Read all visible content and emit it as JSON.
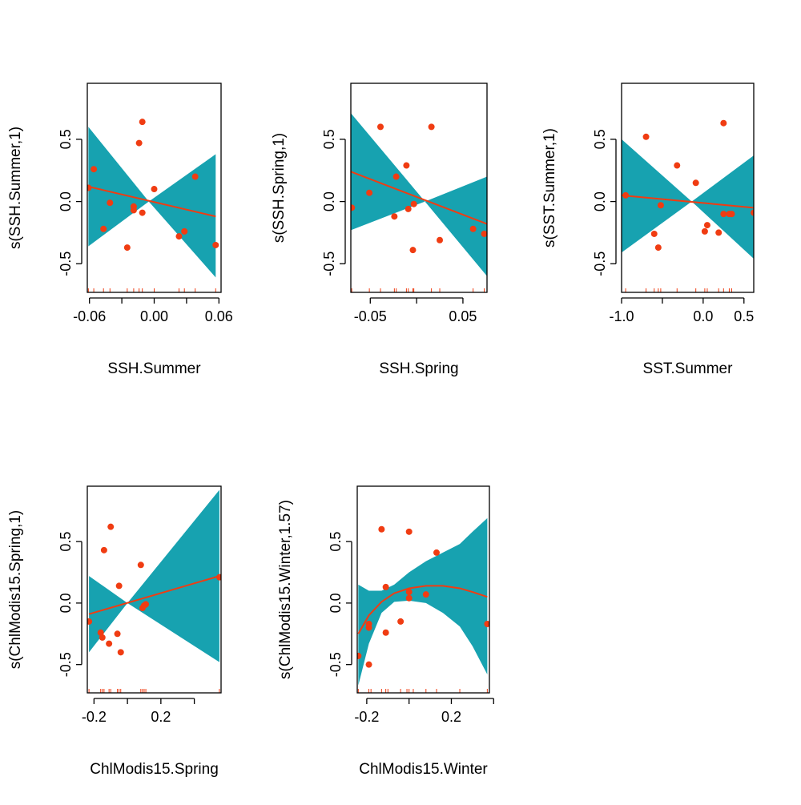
{
  "colors": {
    "band": "#17a2b0",
    "accent": "#f03c12",
    "axis": "#000000",
    "background": "#ffffff"
  },
  "chart_data": [
    {
      "type": "scatter",
      "xlabel": "SSH.Summer",
      "ylabel": "s(SSH.Summer,1)",
      "xlim": [
        -0.062,
        0.062
      ],
      "ylim": [
        -0.73,
        0.95
      ],
      "xticks": [
        -0.06,
        0.0,
        0.06
      ],
      "xtick_labels": [
        "-0.06",
        "0.00",
        "0.06"
      ],
      "xminor": [
        -0.03,
        0.03
      ],
      "yticks": [
        -0.5,
        0.0,
        0.5
      ],
      "ytick_labels": [
        "-0.5",
        "0.0",
        "0.5"
      ],
      "fit": [
        [
          -0.061,
          0.12
        ],
        [
          0.057,
          -0.12
        ]
      ],
      "band_upper": [
        [
          -0.061,
          0.6
        ],
        [
          -0.005,
          0.0
        ],
        [
          0.057,
          0.38
        ]
      ],
      "band_lower": [
        [
          -0.061,
          -0.36
        ],
        [
          -0.005,
          0.0
        ],
        [
          0.057,
          -0.61
        ]
      ],
      "points": [
        [
          -0.061,
          0.11
        ],
        [
          -0.056,
          0.26
        ],
        [
          -0.047,
          -0.22
        ],
        [
          -0.041,
          -0.01
        ],
        [
          -0.025,
          -0.37
        ],
        [
          -0.019,
          -0.04
        ],
        [
          -0.019,
          -0.07
        ],
        [
          -0.014,
          0.47
        ],
        [
          -0.011,
          0.64
        ],
        [
          -0.011,
          -0.09
        ],
        [
          0.0,
          0.1
        ],
        [
          0.023,
          -0.28
        ],
        [
          0.028,
          -0.24
        ],
        [
          0.038,
          0.2
        ],
        [
          0.057,
          -0.35
        ]
      ],
      "rug": [
        -0.061,
        -0.056,
        -0.047,
        -0.041,
        -0.025,
        -0.019,
        -0.014,
        -0.011,
        0.0,
        0.023,
        0.028,
        0.038,
        0.057
      ]
    },
    {
      "type": "scatter",
      "xlabel": "SSH.Spring",
      "ylabel": "s(SSH.Spring,1)",
      "xlim": [
        -0.071,
        0.076
      ],
      "ylim": [
        -0.73,
        0.95
      ],
      "xticks": [
        -0.05,
        0.0,
        0.05
      ],
      "xtick_labels": [
        "-0.05",
        "",
        "0.05"
      ],
      "xminor": [],
      "yticks": [
        -0.5,
        0.0,
        0.5
      ],
      "ytick_labels": [
        "-0.5",
        "0.0",
        "0.5"
      ],
      "fit": [
        [
          -0.071,
          0.24
        ],
        [
          0.076,
          -0.18
        ]
      ],
      "band_upper": [
        [
          -0.071,
          0.71
        ],
        [
          0.009,
          0.0
        ],
        [
          0.076,
          0.2
        ]
      ],
      "band_lower": [
        [
          -0.071,
          -0.23
        ],
        [
          0.009,
          0.0
        ],
        [
          0.076,
          -0.6
        ]
      ],
      "points": [
        [
          -0.07,
          -0.05
        ],
        [
          -0.051,
          0.07
        ],
        [
          -0.039,
          0.6
        ],
        [
          -0.024,
          -0.12
        ],
        [
          -0.022,
          0.2
        ],
        [
          -0.011,
          0.29
        ],
        [
          -0.009,
          -0.06
        ],
        [
          -0.004,
          -0.39
        ],
        [
          -0.003,
          -0.02
        ],
        [
          0.016,
          0.6
        ],
        [
          0.025,
          -0.31
        ],
        [
          0.061,
          -0.22
        ],
        [
          0.073,
          -0.26
        ]
      ],
      "rug": [
        -0.07,
        -0.051,
        -0.039,
        -0.024,
        -0.022,
        -0.011,
        -0.009,
        -0.004,
        -0.003,
        0.016,
        0.025,
        0.061,
        0.073
      ]
    },
    {
      "type": "scatter",
      "xlabel": "SST.Summer",
      "ylabel": "s(SST.Summer,1)",
      "xlim": [
        -1.0,
        0.62
      ],
      "ylim": [
        -0.73,
        0.95
      ],
      "xticks": [
        -1.0,
        0.0,
        0.5
      ],
      "xtick_labels": [
        "-1.0",
        "0.0",
        "0.5"
      ],
      "xminor": [
        -0.5
      ],
      "yticks": [
        -0.5,
        0.0,
        0.5
      ],
      "ytick_labels": [
        "-0.5",
        "0.0",
        "0.5"
      ],
      "fit": [
        [
          -1.0,
          0.05
        ],
        [
          0.62,
          -0.05
        ]
      ],
      "band_upper": [
        [
          -1.0,
          0.5
        ],
        [
          -0.14,
          0.0
        ],
        [
          0.62,
          0.37
        ]
      ],
      "band_lower": [
        [
          -1.0,
          -0.41
        ],
        [
          -0.14,
          0.0
        ],
        [
          0.62,
          -0.46
        ]
      ],
      "points": [
        [
          -0.95,
          0.05
        ],
        [
          -0.7,
          0.52
        ],
        [
          -0.6,
          -0.26
        ],
        [
          -0.55,
          -0.37
        ],
        [
          -0.52,
          -0.03
        ],
        [
          -0.32,
          0.29
        ],
        [
          -0.09,
          0.15
        ],
        [
          0.02,
          -0.24
        ],
        [
          0.05,
          -0.19
        ],
        [
          0.19,
          -0.25
        ],
        [
          0.25,
          -0.1
        ],
        [
          0.25,
          0.63
        ],
        [
          0.32,
          -0.1
        ],
        [
          0.35,
          -0.1
        ],
        [
          0.62,
          -0.09
        ]
      ],
      "rug": [
        -0.95,
        -0.7,
        -0.6,
        -0.55,
        -0.52,
        -0.32,
        -0.09,
        0.02,
        0.05,
        0.19,
        0.25,
        0.32,
        0.35,
        0.62
      ]
    },
    {
      "type": "scatter",
      "xlabel": "ChlModis15.Spring",
      "ylabel": "s(ChlModis15.Spring,1)",
      "xlim": [
        -0.24,
        0.56
      ],
      "ylim": [
        -0.73,
        0.95
      ],
      "xticks": [
        -0.2,
        0.2
      ],
      "xtick_labels": [
        "-0.2",
        "0.2"
      ],
      "xminor": [
        0.0,
        0.4
      ],
      "yticks": [
        -0.5,
        0.0,
        0.5
      ],
      "ytick_labels": [
        "-0.5",
        "0.0",
        "0.5"
      ],
      "fit": [
        [
          -0.23,
          -0.09
        ],
        [
          0.55,
          0.22
        ]
      ],
      "band_upper": [
        [
          -0.23,
          0.22
        ],
        [
          0.0,
          0.0
        ],
        [
          0.55,
          0.92
        ]
      ],
      "band_lower": [
        [
          -0.23,
          -0.4
        ],
        [
          0.0,
          0.0
        ],
        [
          0.55,
          -0.48
        ]
      ],
      "points": [
        [
          -0.23,
          -0.15
        ],
        [
          -0.16,
          -0.24
        ],
        [
          -0.15,
          -0.28
        ],
        [
          -0.14,
          0.43
        ],
        [
          -0.11,
          -0.33
        ],
        [
          -0.1,
          0.62
        ],
        [
          -0.06,
          -0.25
        ],
        [
          -0.05,
          0.14
        ],
        [
          -0.04,
          -0.4
        ],
        [
          0.08,
          0.31
        ],
        [
          0.09,
          -0.04
        ],
        [
          0.1,
          -0.02
        ],
        [
          0.11,
          -0.01
        ],
        [
          0.55,
          0.21
        ]
      ],
      "rug": [
        -0.23,
        -0.16,
        -0.15,
        -0.14,
        -0.11,
        -0.1,
        -0.06,
        -0.05,
        -0.04,
        0.08,
        0.09,
        0.1,
        0.11,
        0.55
      ]
    },
    {
      "type": "scatter",
      "xlabel": "ChlModis15.Winter",
      "ylabel": "s(ChlModis15.Winter,1.57)",
      "xlim": [
        -0.245,
        0.38
      ],
      "ylim": [
        -0.73,
        0.95
      ],
      "xticks": [
        -0.2,
        0.2
      ],
      "xtick_labels": [
        "-0.2",
        "0.2"
      ],
      "xminor": [
        0.0,
        0.4
      ],
      "yticks": [
        -0.5,
        0.0,
        0.5
      ],
      "ytick_labels": [
        "-0.5",
        "0.0",
        "0.5"
      ],
      "fit": [
        [
          -0.24,
          -0.25
        ],
        [
          -0.19,
          -0.1
        ],
        [
          -0.13,
          0.01
        ],
        [
          -0.07,
          0.08
        ],
        [
          0.0,
          0.12
        ],
        [
          0.08,
          0.14
        ],
        [
          0.16,
          0.14
        ],
        [
          0.24,
          0.12
        ],
        [
          0.3,
          0.09
        ],
        [
          0.37,
          0.05
        ]
      ],
      "band_upper": [
        [
          -0.24,
          0.15
        ],
        [
          -0.19,
          0.1
        ],
        [
          -0.13,
          0.1
        ],
        [
          -0.07,
          0.15
        ],
        [
          0.0,
          0.25
        ],
        [
          0.08,
          0.34
        ],
        [
          0.16,
          0.41
        ],
        [
          0.24,
          0.48
        ],
        [
          0.3,
          0.58
        ],
        [
          0.37,
          0.69
        ]
      ],
      "band_lower": [
        [
          -0.24,
          -0.67
        ],
        [
          -0.19,
          -0.33
        ],
        [
          -0.13,
          -0.08
        ],
        [
          -0.07,
          0.01
        ],
        [
          0.0,
          0.02
        ],
        [
          0.08,
          0.0
        ],
        [
          0.16,
          -0.08
        ],
        [
          0.24,
          -0.19
        ],
        [
          0.3,
          -0.35
        ],
        [
          0.37,
          -0.58
        ]
      ],
      "points": [
        [
          -0.24,
          -0.43
        ],
        [
          -0.19,
          -0.5
        ],
        [
          -0.19,
          -0.2
        ],
        [
          -0.19,
          -0.17
        ],
        [
          -0.13,
          0.6
        ],
        [
          -0.11,
          0.13
        ],
        [
          -0.11,
          -0.24
        ],
        [
          -0.04,
          -0.15
        ],
        [
          0.0,
          0.04
        ],
        [
          0.0,
          0.58
        ],
        [
          0.0,
          0.09
        ],
        [
          0.08,
          0.07
        ],
        [
          0.13,
          0.41
        ],
        [
          0.37,
          -0.17
        ]
      ],
      "rug": [
        -0.24,
        -0.19,
        -0.18,
        -0.13,
        -0.11,
        -0.1,
        -0.04,
        -0.01,
        0.0,
        0.02,
        0.08,
        0.13,
        0.24,
        0.37
      ]
    }
  ]
}
